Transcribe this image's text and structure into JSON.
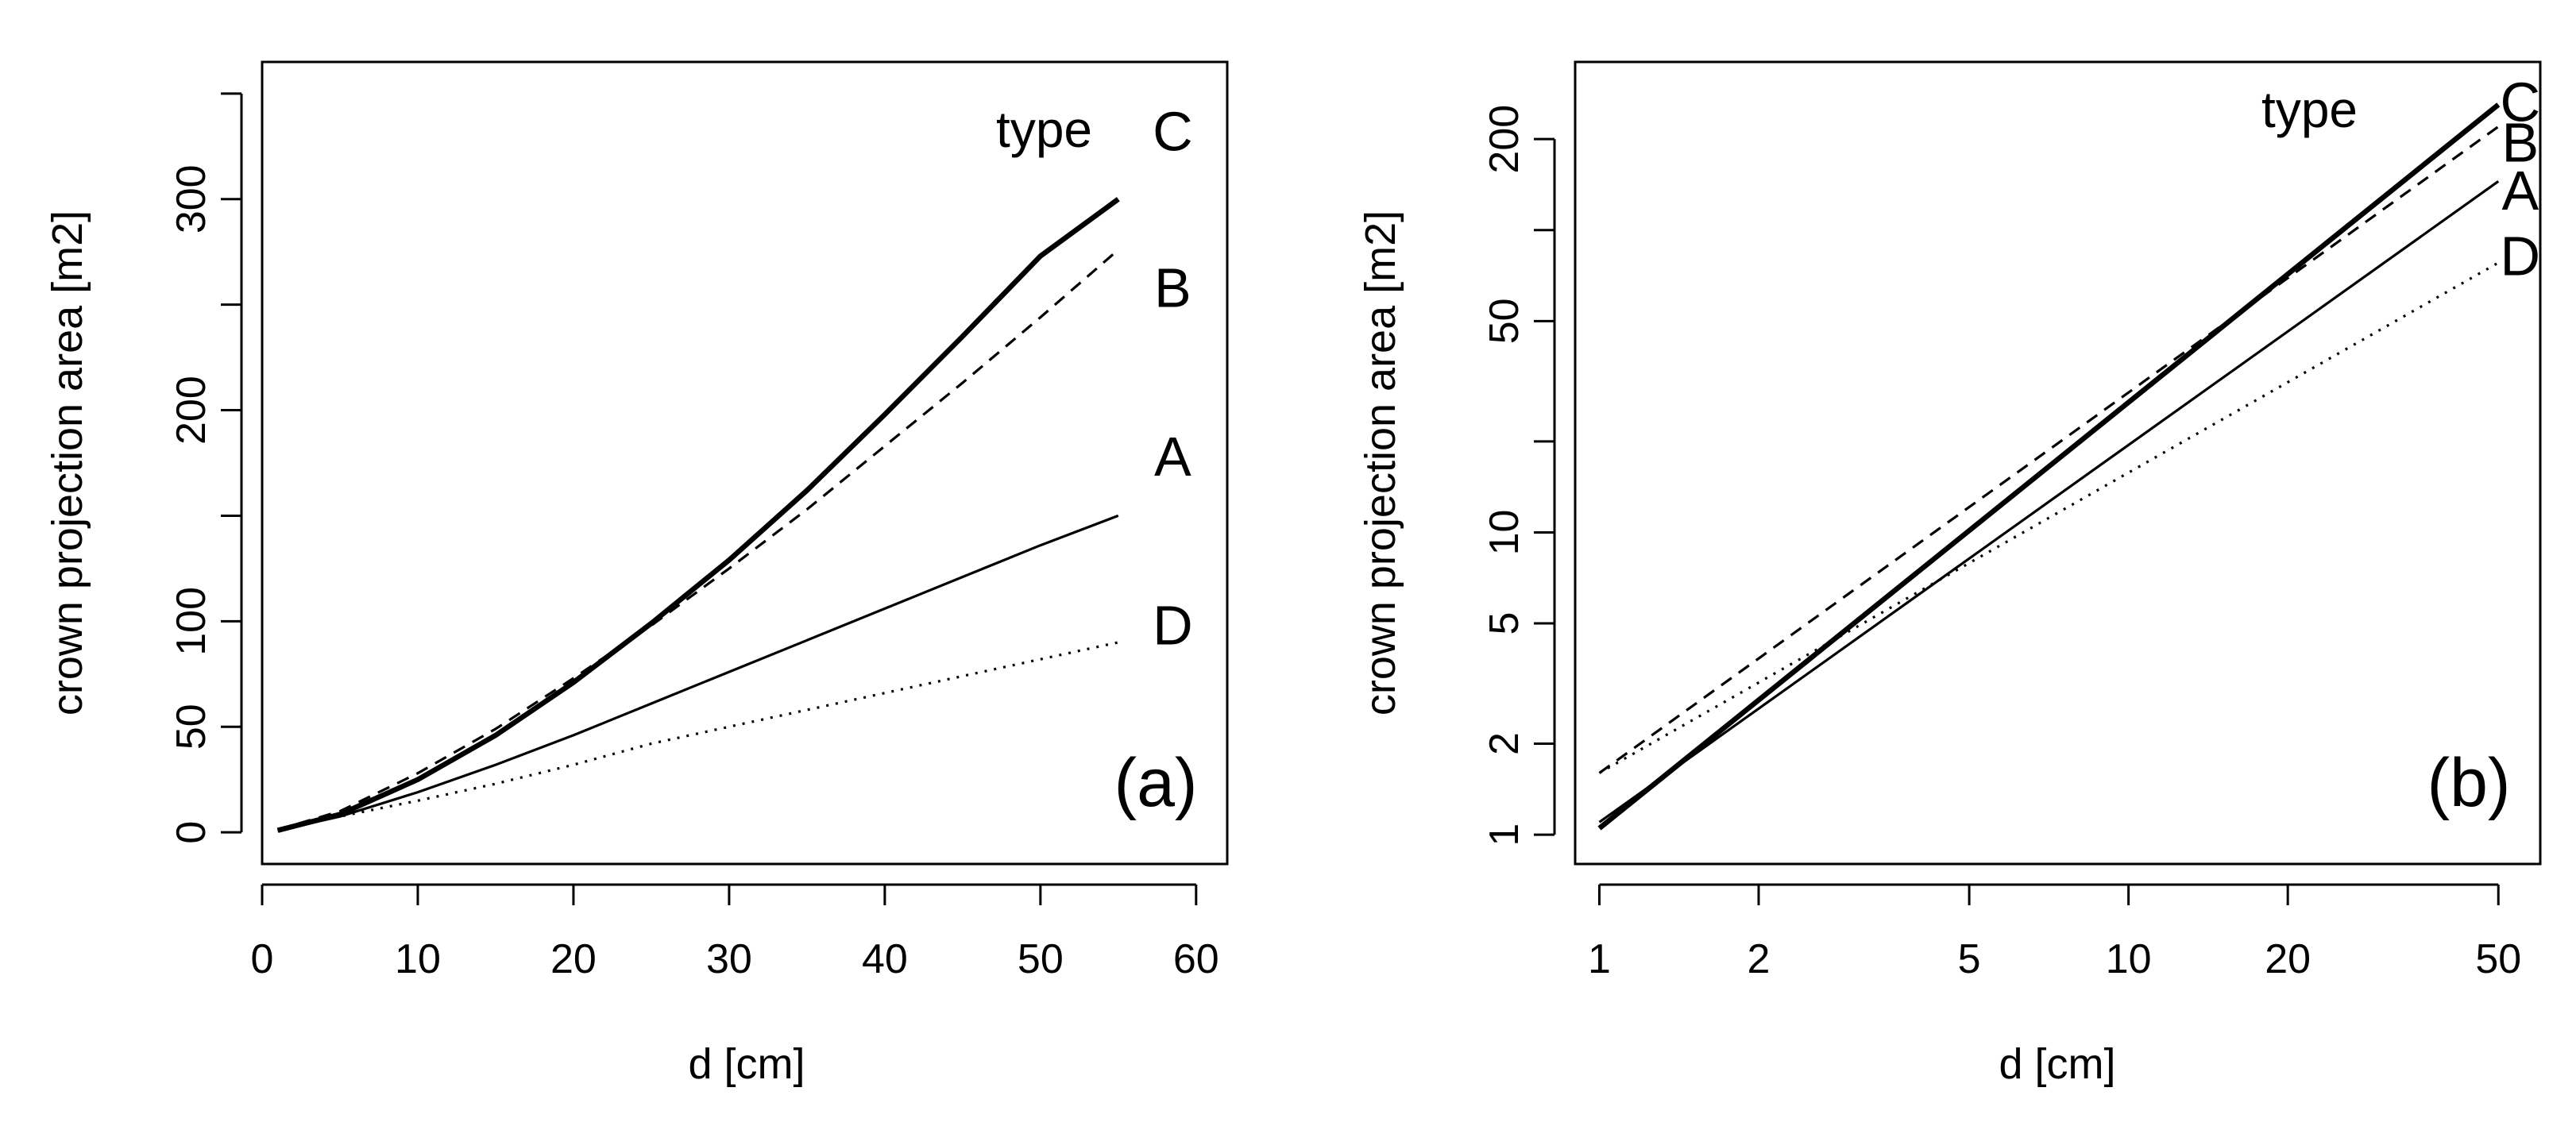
{
  "chart_data": [
    {
      "type": "line",
      "panel": "(a)",
      "xscale": "linear",
      "yscale": "linear",
      "xlabel": "d [cm]",
      "ylabel": "crown projection area [m2]",
      "xlim": [
        0,
        62
      ],
      "ylim": [
        -15,
        365
      ],
      "xticks": [
        0,
        10,
        20,
        30,
        40,
        50,
        60
      ],
      "yticks": [
        0,
        50,
        100,
        150,
        200,
        250,
        300,
        350
      ],
      "ytick_labels": [
        "0",
        "50",
        "100",
        "",
        "200",
        "",
        "300",
        ""
      ],
      "legend_title": "type",
      "legend_position": "top-right",
      "series": [
        {
          "name": "C",
          "line_style": "thick-solid",
          "x": [
            1,
            5,
            10,
            15,
            20,
            25,
            30,
            35,
            40,
            45,
            50,
            55
          ],
          "y": [
            0.9,
            8.5,
            25,
            46,
            71,
            99,
            129,
            162,
            198,
            235,
            273,
            300
          ]
        },
        {
          "name": "B",
          "line_style": "dashed",
          "x": [
            1,
            5,
            10,
            15,
            20,
            25,
            30,
            35,
            40,
            45,
            50,
            55
          ],
          "y": [
            1.2,
            10,
            28,
            49,
            73,
            98,
            125,
            153,
            183,
            213,
            244,
            276
          ]
        },
        {
          "name": "A",
          "line_style": "solid",
          "x": [
            1,
            5,
            10,
            15,
            20,
            25,
            30,
            35,
            40,
            45,
            50,
            55
          ],
          "y": [
            0.8,
            7.5,
            19,
            32,
            46,
            61,
            76,
            91,
            106,
            121,
            136,
            150
          ]
        },
        {
          "name": "D",
          "line_style": "dotted",
          "x": [
            1,
            5,
            10,
            15,
            20,
            25,
            30,
            35,
            40,
            45,
            50,
            55
          ],
          "y": [
            1.5,
            7.5,
            15,
            23,
            32,
            42,
            50,
            58,
            66,
            74,
            82,
            90
          ]
        }
      ],
      "label_y": {
        "C": 332,
        "B": 258,
        "A": 178,
        "D": 98
      },
      "label_x": 58.5
    },
    {
      "type": "line",
      "panel": "(b)",
      "xscale": "log",
      "yscale": "log",
      "xlabel": "d [cm]",
      "ylabel": "crown projection area [m2]",
      "xlim": [
        0.9,
        60
      ],
      "ylim": [
        0.8,
        360
      ],
      "xticks": [
        1,
        2,
        5,
        10,
        20,
        50
      ],
      "yticks": [
        1,
        2,
        5,
        10,
        20,
        50,
        100,
        200
      ],
      "ytick_labels": [
        "1",
        "2",
        "5",
        "10",
        "",
        "50",
        "",
        "200"
      ],
      "legend_title": "type",
      "legend_position": "top-right",
      "series": [
        {
          "name": "C",
          "line_style": "thick-solid",
          "x": [
            1,
            50
          ],
          "y": [
            1.05,
            260
          ]
        },
        {
          "name": "B",
          "line_style": "dashed",
          "x": [
            1,
            50
          ],
          "y": [
            1.6,
            220
          ]
        },
        {
          "name": "A",
          "line_style": "solid",
          "x": [
            1,
            50
          ],
          "y": [
            1.1,
            145
          ]
        },
        {
          "name": "D",
          "line_style": "dotted",
          "x": [
            1,
            50
          ],
          "y": [
            1.6,
            78
          ]
        }
      ],
      "label_y": {
        "C": 265,
        "B": 195,
        "A": 135,
        "D": 82
      },
      "label_x": 55
    }
  ]
}
